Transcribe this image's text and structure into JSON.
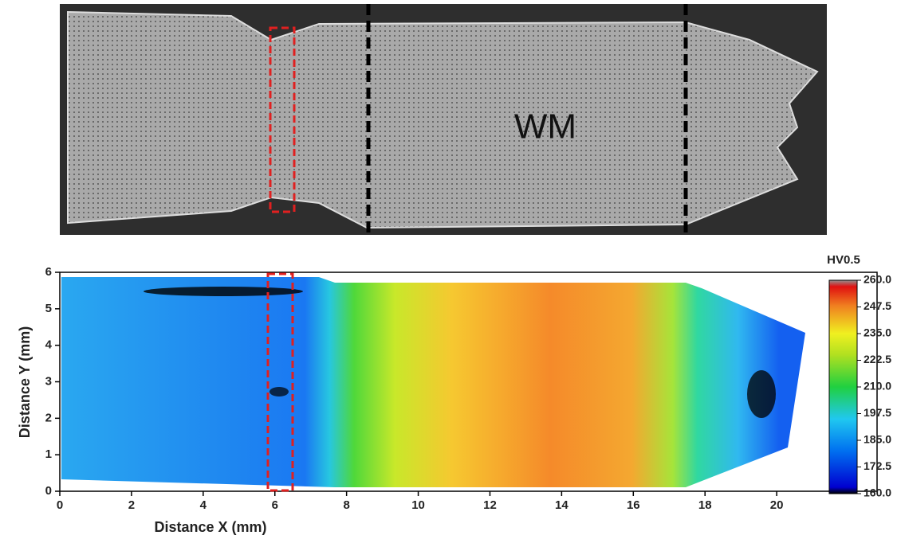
{
  "chart_data": {
    "type": "contour",
    "annotations": [
      "WM"
    ],
    "xlabel": "Distance X (mm)",
    "ylabel": "Distance Y (mm)",
    "xlim": [
      0,
      22.8
    ],
    "xticks": [
      0,
      2,
      4,
      6,
      8,
      10,
      12,
      14,
      16,
      18,
      20
    ],
    "ylim": [
      0,
      6
    ],
    "yticks": [
      0,
      1,
      2,
      3,
      4,
      5,
      6
    ],
    "colorbar": {
      "label": "HV0.5",
      "lim": [
        160,
        260
      ],
      "ticks": [
        {
          "value": 160,
          "label": "160.0"
        },
        {
          "value": 172.5,
          "label": "172.5"
        },
        {
          "value": 185,
          "label": "185.0"
        },
        {
          "value": 197.5,
          "label": "197.5"
        },
        {
          "value": 210,
          "label": "210.0"
        },
        {
          "value": 222.5,
          "label": "222.5"
        },
        {
          "value": 235,
          "label": "235.0"
        },
        {
          "value": 247.5,
          "label": "247.5"
        },
        {
          "value": 260,
          "label": "260.0"
        }
      ]
    }
  }
}
